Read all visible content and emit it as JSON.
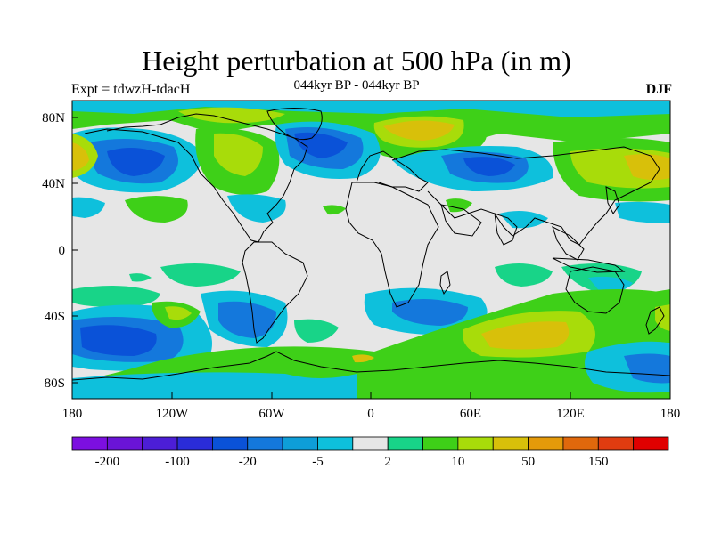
{
  "title": "Height perturbation at 500 hPa (in m)",
  "left_string": "Expt = tdwzH-tdacH",
  "center_string": "044kyr BP - 044kyr BP",
  "right_string": "DJF",
  "x_ticks": [
    "180",
    "120W",
    "60W",
    "0",
    "60E",
    "120E",
    "180"
  ],
  "y_ticks": [
    "80N",
    "40N",
    "0",
    "40S",
    "80S"
  ],
  "colorbar": {
    "colors": [
      "#7c0fe0",
      "#6a14d6",
      "#4c1ed6",
      "#2a2cd8",
      "#0a52d8",
      "#1478dc",
      "#0e9ed8",
      "#0ec0dc",
      "#e6e6e6",
      "#18d488",
      "#3ed018",
      "#a8dc0a",
      "#d8c00a",
      "#e49a0a",
      "#e0680c",
      "#e03c10",
      "#e00000"
    ],
    "labels": [
      {
        "text": "-200",
        "after_box": 1
      },
      {
        "text": "-100",
        "after_box": 3
      },
      {
        "text": "-20",
        "after_box": 5
      },
      {
        "text": "-5",
        "after_box": 7
      },
      {
        "text": "2",
        "after_box": 9
      },
      {
        "text": "10",
        "after_box": 11
      },
      {
        "text": "50",
        "after_box": 13
      },
      {
        "text": "150",
        "after_box": 15
      }
    ]
  }
}
